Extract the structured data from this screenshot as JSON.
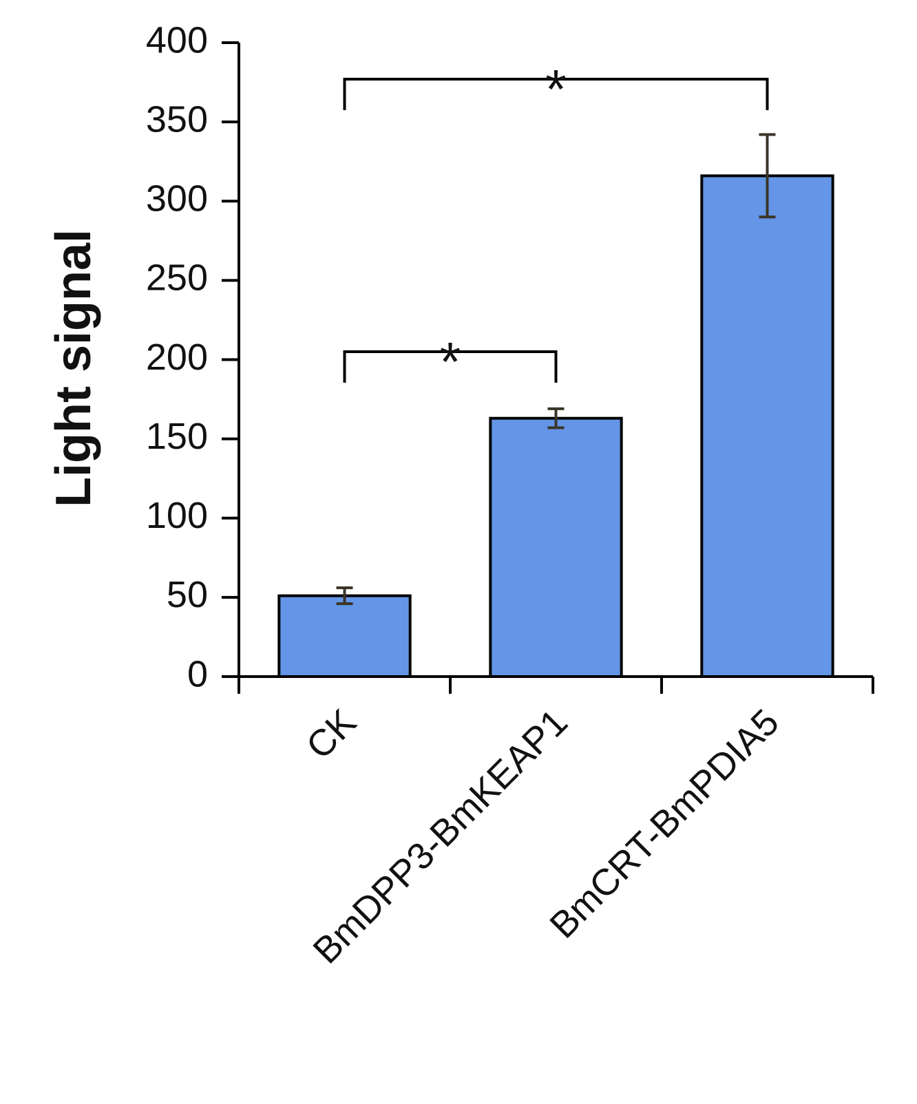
{
  "chart_data": {
    "type": "bar",
    "y_label": "Light signal",
    "categories": [
      "CK",
      "BmDPP3-BmKEAP1",
      "BmCRT-BmPDIA5"
    ],
    "values": [
      51,
      163,
      316
    ],
    "errors": [
      5,
      6,
      26
    ],
    "color": "#6495e6",
    "ylim": [
      0,
      400
    ],
    "yticks": [
      0,
      50,
      100,
      150,
      200,
      250,
      300,
      350,
      400
    ],
    "annotations": [
      {
        "text": "*",
        "between": [
          "CK",
          "BmCRT-BmPDIA5"
        ],
        "y": 377
      },
      {
        "text": "*",
        "between": [
          "CK",
          "BmDPP3-BmKEAP1"
        ],
        "y": 205
      }
    ]
  }
}
